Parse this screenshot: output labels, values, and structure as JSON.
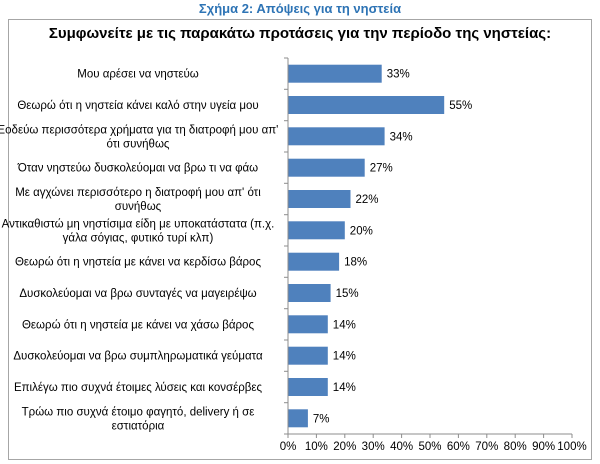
{
  "caption": "Σχήμα 2: Απόψεις για τη νηστεία",
  "chart_data": {
    "type": "bar",
    "orientation": "horizontal",
    "title": "Συμφωνείτε με τις παρακάτω προτάσεις για την περίοδο της νηστείας:",
    "categories": [
      [
        "Μου αρέσει να νηστεύω"
      ],
      [
        "Θεωρώ ότι η νηστεία κάνει καλό στην υγεία μου"
      ],
      [
        "Ξοδεύω περισσότερα χρήματα για τη διατροφή μου απ'",
        "ότι συνήθως"
      ],
      [
        "Όταν νηστεύω δυσκολεύομαι να βρω τι να φάω"
      ],
      [
        "Με αγχώνει περισσότερο η διατροφή μου απ' ότι",
        "συνήθως"
      ],
      [
        "Αντικαθιστώ μη νηστίσιμα είδη με υποκατάστατα (π.χ.",
        "γάλα σόγιας, φυτικό τυρί κλπ)"
      ],
      [
        "Θεωρώ ότι η νηστεία με κάνει να κερδίσω βάρος"
      ],
      [
        "Δυσκολεύομαι να βρω συνταγές να μαγειρέψω"
      ],
      [
        "Θεωρώ ότι η νηστεία με κάνει να χάσω βάρος"
      ],
      [
        "Δυσκολεύομαι να βρω συμπληρωματικά γεύματα"
      ],
      [
        "Επιλέγω πιο συχνά έτοιμες λύσεις και κονσέρβες"
      ],
      [
        "Τρώω πιο συχνά έτοιμο φαγητό, delivery ή σε",
        "εστιατόρια"
      ]
    ],
    "values": [
      33,
      55,
      34,
      27,
      22,
      20,
      18,
      15,
      14,
      14,
      14,
      7
    ],
    "value_labels": [
      "33%",
      "55%",
      "34%",
      "27%",
      "22%",
      "20%",
      "18%",
      "15%",
      "14%",
      "14%",
      "14%",
      "7%"
    ],
    "xlim": [
      0,
      100
    ],
    "x_ticks": [
      "0%",
      "10%",
      "20%",
      "30%",
      "40%",
      "50%",
      "60%",
      "70%",
      "80%",
      "90%",
      "100%"
    ],
    "grid": false,
    "legend": "none",
    "colors": {
      "bar": "#4f81bd",
      "axis": "#8c8c8c",
      "caption": "#2e74b5"
    }
  }
}
